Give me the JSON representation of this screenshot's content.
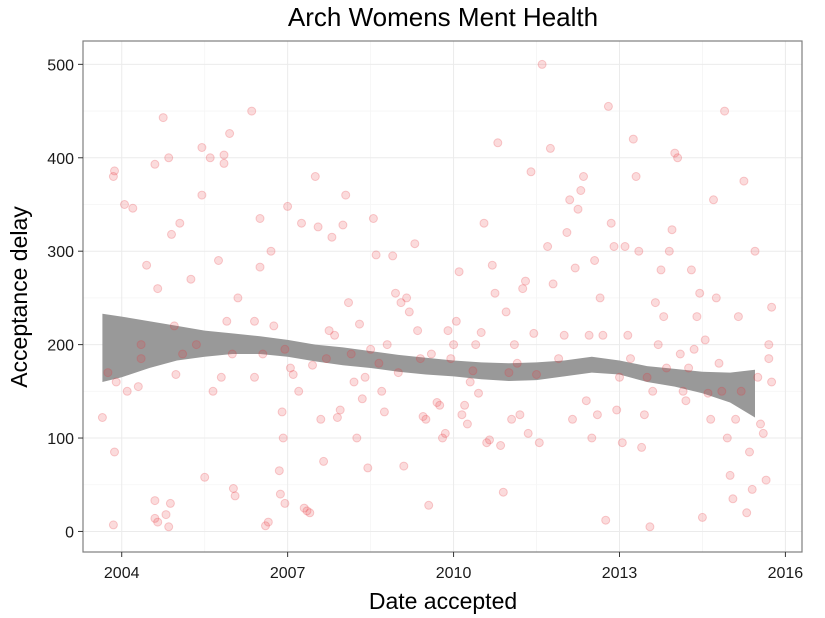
{
  "chart_data": {
    "type": "scatter",
    "title": "Arch Womens Ment Health",
    "xlabel": "Date accepted",
    "ylabel": "Acceptance delay",
    "x_ticks": [
      2004,
      2007,
      2010,
      2013,
      2016
    ],
    "y_ticks": [
      0,
      100,
      200,
      300,
      400,
      500
    ],
    "xlim": [
      2003.3,
      2016.3
    ],
    "ylim": [
      -22,
      525
    ],
    "grid": true,
    "colors": {
      "points": "#e8373e",
      "band": "#999999",
      "frame": "#7f7f7f"
    },
    "point_opacity": 0.18,
    "points": [
      [
        2003.65,
        122
      ],
      [
        2003.75,
        170
      ],
      [
        2003.85,
        7
      ],
      [
        2003.85,
        380
      ],
      [
        2003.87,
        386
      ],
      [
        2003.87,
        85
      ],
      [
        2003.9,
        160
      ],
      [
        2004.05,
        350
      ],
      [
        2004.1,
        150
      ],
      [
        2004.2,
        346
      ],
      [
        2004.3,
        155
      ],
      [
        2004.35,
        185
      ],
      [
        2004.35,
        200
      ],
      [
        2004.45,
        285
      ],
      [
        2004.6,
        393
      ],
      [
        2004.6,
        33
      ],
      [
        2004.6,
        14
      ],
      [
        2004.65,
        10
      ],
      [
        2004.65,
        260
      ],
      [
        2004.75,
        443
      ],
      [
        2004.8,
        18
      ],
      [
        2004.85,
        400
      ],
      [
        2004.85,
        5
      ],
      [
        2004.88,
        30
      ],
      [
        2004.9,
        318
      ],
      [
        2004.95,
        220
      ],
      [
        2004.98,
        168
      ],
      [
        2005.05,
        330
      ],
      [
        2005.1,
        190
      ],
      [
        2005.25,
        270
      ],
      [
        2005.35,
        200
      ],
      [
        2005.45,
        360
      ],
      [
        2005.45,
        411
      ],
      [
        2005.5,
        58
      ],
      [
        2005.6,
        400
      ],
      [
        2005.65,
        150
      ],
      [
        2005.75,
        290
      ],
      [
        2005.8,
        165
      ],
      [
        2005.85,
        394
      ],
      [
        2005.85,
        403
      ],
      [
        2005.9,
        225
      ],
      [
        2005.95,
        426
      ],
      [
        2006.0,
        190
      ],
      [
        2006.02,
        46
      ],
      [
        2006.05,
        38
      ],
      [
        2006.1,
        250
      ],
      [
        2006.35,
        450
      ],
      [
        2006.4,
        165
      ],
      [
        2006.4,
        225
      ],
      [
        2006.5,
        335
      ],
      [
        2006.5,
        283
      ],
      [
        2006.55,
        190
      ],
      [
        2006.6,
        6
      ],
      [
        2006.65,
        10
      ],
      [
        2006.7,
        300
      ],
      [
        2006.75,
        220
      ],
      [
        2006.85,
        65
      ],
      [
        2006.87,
        40
      ],
      [
        2006.9,
        128
      ],
      [
        2006.92,
        100
      ],
      [
        2006.95,
        30
      ],
      [
        2006.95,
        195
      ],
      [
        2007.0,
        348
      ],
      [
        2007.05,
        175
      ],
      [
        2007.1,
        168
      ],
      [
        2007.2,
        150
      ],
      [
        2007.25,
        330
      ],
      [
        2007.3,
        25
      ],
      [
        2007.35,
        22
      ],
      [
        2007.4,
        20
      ],
      [
        2007.45,
        178
      ],
      [
        2007.5,
        380
      ],
      [
        2007.55,
        326
      ],
      [
        2007.6,
        120
      ],
      [
        2007.65,
        75
      ],
      [
        2007.7,
        185
      ],
      [
        2007.75,
        215
      ],
      [
        2007.8,
        315
      ],
      [
        2007.85,
        210
      ],
      [
        2007.9,
        122
      ],
      [
        2007.95,
        130
      ],
      [
        2008.0,
        328
      ],
      [
        2008.05,
        360
      ],
      [
        2008.1,
        245
      ],
      [
        2008.15,
        190
      ],
      [
        2008.2,
        160
      ],
      [
        2008.25,
        100
      ],
      [
        2008.3,
        222
      ],
      [
        2008.35,
        142
      ],
      [
        2008.4,
        165
      ],
      [
        2008.45,
        68
      ],
      [
        2008.5,
        195
      ],
      [
        2008.55,
        335
      ],
      [
        2008.6,
        296
      ],
      [
        2008.65,
        180
      ],
      [
        2008.7,
        150
      ],
      [
        2008.75,
        128
      ],
      [
        2008.8,
        200
      ],
      [
        2008.9,
        295
      ],
      [
        2008.95,
        255
      ],
      [
        2009.0,
        170
      ],
      [
        2009.05,
        245
      ],
      [
        2009.1,
        70
      ],
      [
        2009.15,
        250
      ],
      [
        2009.2,
        235
      ],
      [
        2009.3,
        308
      ],
      [
        2009.35,
        215
      ],
      [
        2009.4,
        185
      ],
      [
        2009.45,
        123
      ],
      [
        2009.5,
        120
      ],
      [
        2009.55,
        28
      ],
      [
        2009.6,
        190
      ],
      [
        2009.7,
        138
      ],
      [
        2009.75,
        135
      ],
      [
        2009.8,
        100
      ],
      [
        2009.85,
        105
      ],
      [
        2009.9,
        215
      ],
      [
        2009.95,
        185
      ],
      [
        2010.0,
        200
      ],
      [
        2010.05,
        225
      ],
      [
        2010.1,
        278
      ],
      [
        2010.15,
        125
      ],
      [
        2010.2,
        135
      ],
      [
        2010.25,
        115
      ],
      [
        2010.3,
        160
      ],
      [
        2010.35,
        172
      ],
      [
        2010.4,
        200
      ],
      [
        2010.45,
        148
      ],
      [
        2010.5,
        213
      ],
      [
        2010.55,
        330
      ],
      [
        2010.6,
        95
      ],
      [
        2010.65,
        98
      ],
      [
        2010.7,
        285
      ],
      [
        2010.75,
        255
      ],
      [
        2010.8,
        416
      ],
      [
        2010.85,
        92
      ],
      [
        2010.9,
        42
      ],
      [
        2010.95,
        235
      ],
      [
        2011.0,
        170
      ],
      [
        2011.05,
        120
      ],
      [
        2011.1,
        200
      ],
      [
        2011.15,
        180
      ],
      [
        2011.2,
        125
      ],
      [
        2011.25,
        260
      ],
      [
        2011.3,
        268
      ],
      [
        2011.35,
        105
      ],
      [
        2011.4,
        385
      ],
      [
        2011.45,
        212
      ],
      [
        2011.5,
        168
      ],
      [
        2011.55,
        95
      ],
      [
        2011.6,
        500
      ],
      [
        2011.7,
        305
      ],
      [
        2011.75,
        410
      ],
      [
        2011.8,
        265
      ],
      [
        2011.9,
        185
      ],
      [
        2012.0,
        210
      ],
      [
        2012.05,
        320
      ],
      [
        2012.1,
        355
      ],
      [
        2012.15,
        120
      ],
      [
        2012.2,
        282
      ],
      [
        2012.25,
        345
      ],
      [
        2012.3,
        365
      ],
      [
        2012.35,
        380
      ],
      [
        2012.4,
        140
      ],
      [
        2012.45,
        210
      ],
      [
        2012.5,
        100
      ],
      [
        2012.55,
        290
      ],
      [
        2012.6,
        125
      ],
      [
        2012.65,
        250
      ],
      [
        2012.7,
        210
      ],
      [
        2012.75,
        12
      ],
      [
        2012.8,
        455
      ],
      [
        2012.85,
        330
      ],
      [
        2012.9,
        305
      ],
      [
        2012.95,
        130
      ],
      [
        2013.0,
        165
      ],
      [
        2013.05,
        95
      ],
      [
        2013.1,
        305
      ],
      [
        2013.15,
        210
      ],
      [
        2013.2,
        185
      ],
      [
        2013.25,
        420
      ],
      [
        2013.3,
        380
      ],
      [
        2013.35,
        300
      ],
      [
        2013.4,
        90
      ],
      [
        2013.45,
        125
      ],
      [
        2013.5,
        165
      ],
      [
        2013.55,
        5
      ],
      [
        2013.6,
        150
      ],
      [
        2013.65,
        245
      ],
      [
        2013.7,
        200
      ],
      [
        2013.75,
        280
      ],
      [
        2013.8,
        230
      ],
      [
        2013.85,
        175
      ],
      [
        2013.9,
        300
      ],
      [
        2013.95,
        323
      ],
      [
        2014.0,
        405
      ],
      [
        2014.05,
        400
      ],
      [
        2014.1,
        190
      ],
      [
        2014.15,
        150
      ],
      [
        2014.2,
        140
      ],
      [
        2014.25,
        175
      ],
      [
        2014.3,
        280
      ],
      [
        2014.35,
        195
      ],
      [
        2014.4,
        230
      ],
      [
        2014.45,
        255
      ],
      [
        2014.5,
        15
      ],
      [
        2014.55,
        205
      ],
      [
        2014.6,
        148
      ],
      [
        2014.65,
        120
      ],
      [
        2014.7,
        355
      ],
      [
        2014.75,
        250
      ],
      [
        2014.8,
        180
      ],
      [
        2014.85,
        150
      ],
      [
        2014.9,
        450
      ],
      [
        2014.95,
        100
      ],
      [
        2015.0,
        60
      ],
      [
        2015.05,
        35
      ],
      [
        2015.1,
        120
      ],
      [
        2015.15,
        230
      ],
      [
        2015.2,
        150
      ],
      [
        2015.25,
        375
      ],
      [
        2015.3,
        20
      ],
      [
        2015.35,
        85
      ],
      [
        2015.4,
        45
      ],
      [
        2015.45,
        300
      ],
      [
        2015.5,
        165
      ],
      [
        2015.55,
        115
      ],
      [
        2015.6,
        105
      ],
      [
        2015.65,
        55
      ],
      [
        2015.7,
        185
      ],
      [
        2015.7,
        200
      ],
      [
        2015.75,
        160
      ],
      [
        2015.75,
        240
      ]
    ],
    "smooth_band": [
      [
        2003.65,
        160,
        233
      ],
      [
        2004.0,
        165,
        230
      ],
      [
        2004.5,
        175,
        225
      ],
      [
        2005.0,
        183,
        220
      ],
      [
        2005.5,
        187,
        215
      ],
      [
        2006.0,
        190,
        212
      ],
      [
        2006.5,
        190,
        209
      ],
      [
        2007.0,
        187,
        205
      ],
      [
        2007.5,
        182,
        200
      ],
      [
        2008.0,
        178,
        197
      ],
      [
        2008.5,
        175,
        193
      ],
      [
        2009.0,
        171,
        189
      ],
      [
        2009.5,
        168,
        186
      ],
      [
        2010.0,
        166,
        183
      ],
      [
        2010.5,
        163,
        181
      ],
      [
        2011.0,
        161,
        180
      ],
      [
        2011.5,
        162,
        181
      ],
      [
        2012.0,
        166,
        183
      ],
      [
        2012.5,
        170,
        187
      ],
      [
        2013.0,
        168,
        183
      ],
      [
        2013.5,
        160,
        177
      ],
      [
        2014.0,
        155,
        174
      ],
      [
        2014.5,
        148,
        171
      ],
      [
        2015.0,
        138,
        170
      ],
      [
        2015.45,
        122,
        173
      ]
    ]
  }
}
